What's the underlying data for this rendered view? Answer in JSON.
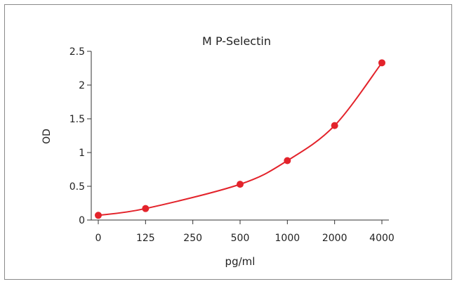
{
  "chart_data": {
    "type": "line",
    "title": "M  P-Selectin",
    "xlabel": "pg/ml",
    "ylabel": "OD",
    "categories": [
      "0",
      "125",
      "250",
      "500",
      "1000",
      "2000",
      "4000"
    ],
    "points": [
      {
        "x": "0",
        "y": 0.07
      },
      {
        "x": "125",
        "y": 0.17
      },
      {
        "x": "500",
        "y": 0.53
      },
      {
        "x": "1000",
        "y": 0.88
      },
      {
        "x": "2000",
        "y": 1.4
      },
      {
        "x": "4000",
        "y": 2.33
      }
    ],
    "yticks": [
      "0",
      "0.5",
      "1",
      "1.5",
      "2",
      "2.5"
    ],
    "ylim": [
      0,
      2.5
    ],
    "grid": false,
    "colors": {
      "series": "#e3232b",
      "axis": "#333333"
    }
  }
}
